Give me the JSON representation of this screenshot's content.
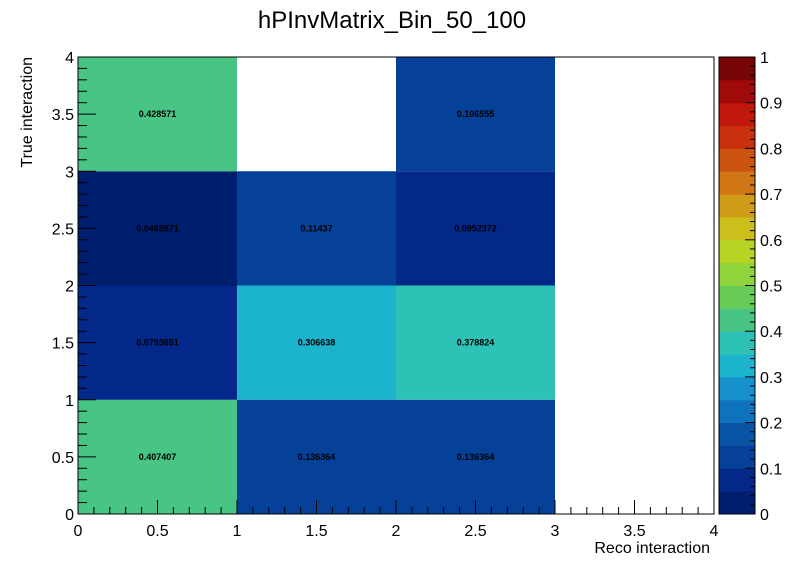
{
  "chart_data": {
    "type": "heatmap",
    "title": "hPInvMatrix_Bin_50_100",
    "xlabel": "Reco interaction",
    "ylabel": "True interaction",
    "xlim": [
      0,
      4
    ],
    "ylim": [
      0,
      4
    ],
    "zlim": [
      0,
      1
    ],
    "x_ticks": [
      "0",
      "0.5",
      "1",
      "1.5",
      "2",
      "2.5",
      "3",
      "3.5",
      "4"
    ],
    "y_ticks": [
      "0",
      "0.5",
      "1",
      "1.5",
      "2",
      "2.5",
      "3",
      "3.5",
      "4"
    ],
    "z_ticks": [
      "0",
      "0.1",
      "0.2",
      "0.3",
      "0.4",
      "0.5",
      "0.6",
      "0.7",
      "0.8",
      "0.9",
      "1"
    ],
    "cells": [
      {
        "x": 0.5,
        "y": 0.5,
        "value": 0.407407,
        "label": "0.407407"
      },
      {
        "x": 1.5,
        "y": 0.5,
        "value": 0.136364,
        "label": "0.136364"
      },
      {
        "x": 2.5,
        "y": 0.5,
        "value": 0.136364,
        "label": "0.136364"
      },
      {
        "x": 0.5,
        "y": 1.5,
        "value": 0.0793651,
        "label": "0.0793651"
      },
      {
        "x": 1.5,
        "y": 1.5,
        "value": 0.306638,
        "label": "0.306638"
      },
      {
        "x": 2.5,
        "y": 1.5,
        "value": 0.378824,
        "label": "0.378824"
      },
      {
        "x": 0.5,
        "y": 2.5,
        "value": 0.0483871,
        "label": "0.0483871"
      },
      {
        "x": 1.5,
        "y": 2.5,
        "value": 0.11437,
        "label": "0.11437"
      },
      {
        "x": 2.5,
        "y": 2.5,
        "value": 0.0952372,
        "label": "0.0952372"
      },
      {
        "x": 0.5,
        "y": 3.5,
        "value": 0.428571,
        "label": "0.428571"
      },
      {
        "x": 2.5,
        "y": 3.5,
        "value": 0.106555,
        "label": "0.106555"
      }
    ],
    "palette": [
      "#001e6e",
      "#03288a",
      "#054199",
      "#0a54a6",
      "#0f72bf",
      "#1691cc",
      "#1cb3cc",
      "#2ec2b7",
      "#48c485",
      "#66cc55",
      "#8ed43a",
      "#b7d324",
      "#cdbf1b",
      "#d09b17",
      "#d07614",
      "#cd5311",
      "#c9300e",
      "#c0180c",
      "#a00b0a",
      "#780505"
    ]
  }
}
